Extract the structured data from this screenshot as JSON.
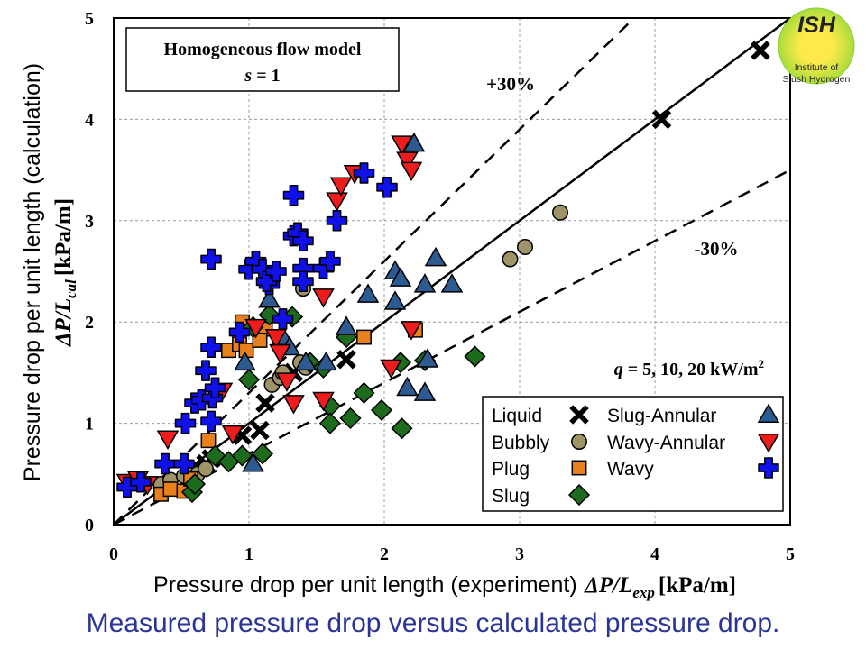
{
  "chart_data": {
    "type": "scatter",
    "title": "Homogeneous flow model",
    "subtitle": "s = 1",
    "xlabel": "Pressure drop per unit length (experiment) ΔP/L_exp [kPa/m]",
    "xlabel_plain": "Pressure drop per unit length (experiment)",
    "xlabel_symbol": "ΔP/L",
    "xlabel_sub": "exp",
    "xlabel_unit": "[kPa/m]",
    "ylabel": "Pressure drop per unit length (calculation) ΔP/L_cal [kPa/m]",
    "ylabel_plain": "Pressure drop per unit length (calculation)",
    "ylabel_symbol": "ΔP/L",
    "ylabel_sub": "cal",
    "ylabel_unit": "[kPa/m]",
    "xlim": [
      0,
      5
    ],
    "ylim": [
      0,
      5
    ],
    "xticks": [
      "0",
      "1",
      "2",
      "3",
      "4",
      "5"
    ],
    "yticks": [
      "0",
      "1",
      "2",
      "3",
      "4",
      "5"
    ],
    "grid": true,
    "legend_position": "bottom-right",
    "annotations": {
      "plus30": "+30%",
      "minus30": "-30%",
      "heat_flux": "q = 5, 10, 20 kW/m²",
      "heat_flux_var": "q",
      "heat_flux_rest": " = 5, 10, 20 kW/m",
      "heat_flux_sup": "2",
      "model_box_line1": "Homogeneous flow model",
      "model_box_line2_var": "s",
      "model_box_line2_rest": " = 1"
    },
    "reference_lines": [
      {
        "name": "y = x",
        "slope": 1.0,
        "style": "solid"
      },
      {
        "name": "+30%",
        "slope": 1.3,
        "style": "dashed"
      },
      {
        "name": "-30%",
        "slope": 0.7,
        "style": "dashed"
      }
    ],
    "series": [
      {
        "name": "Liquid",
        "marker": "x",
        "color": "#000000",
        "points": [
          [
            0.6,
            0.55
          ],
          [
            0.68,
            0.6
          ],
          [
            0.72,
            0.65
          ],
          [
            0.95,
            0.88
          ],
          [
            1.08,
            0.93
          ],
          [
            1.12,
            1.2
          ],
          [
            1.33,
            1.5
          ],
          [
            1.72,
            1.63
          ],
          [
            4.05,
            4.0
          ],
          [
            4.78,
            4.68
          ]
        ]
      },
      {
        "name": "Bubbly",
        "marker": "circle",
        "color": "#9e9467",
        "points": [
          [
            0.35,
            0.4
          ],
          [
            0.42,
            0.44
          ],
          [
            0.52,
            0.48
          ],
          [
            0.62,
            0.5
          ],
          [
            0.68,
            0.55
          ],
          [
            1.17,
            1.38
          ],
          [
            1.23,
            1.45
          ],
          [
            1.25,
            1.5
          ],
          [
            1.38,
            1.6
          ],
          [
            1.42,
            1.55
          ],
          [
            1.4,
            2.33
          ],
          [
            2.93,
            2.62
          ],
          [
            3.04,
            2.74
          ],
          [
            3.3,
            3.08
          ]
        ]
      },
      {
        "name": "Plug",
        "marker": "square",
        "color": "#e8801e",
        "points": [
          [
            0.35,
            0.3
          ],
          [
            0.42,
            0.35
          ],
          [
            0.52,
            0.33
          ],
          [
            0.57,
            0.45
          ],
          [
            0.7,
            0.83
          ],
          [
            0.85,
            1.72
          ],
          [
            0.93,
            1.78
          ],
          [
            0.98,
            1.72
          ],
          [
            0.95,
            2.0
          ],
          [
            1.12,
            1.93
          ],
          [
            1.08,
            1.82
          ],
          [
            1.85,
            1.85
          ],
          [
            2.23,
            1.92
          ]
        ]
      },
      {
        "name": "Slug",
        "marker": "diamond",
        "color": "#1d6b1d",
        "points": [
          [
            0.58,
            0.32
          ],
          [
            0.6,
            0.4
          ],
          [
            0.75,
            0.68
          ],
          [
            0.85,
            0.62
          ],
          [
            0.95,
            0.68
          ],
          [
            1.1,
            0.7
          ],
          [
            1.0,
            1.43
          ],
          [
            1.03,
            1.95
          ],
          [
            1.15,
            2.07
          ],
          [
            1.32,
            2.05
          ],
          [
            1.45,
            1.6
          ],
          [
            1.55,
            1.55
          ],
          [
            1.6,
            1.17
          ],
          [
            1.6,
            1.0
          ],
          [
            1.75,
            1.05
          ],
          [
            1.85,
            1.3
          ],
          [
            1.98,
            1.13
          ],
          [
            2.13,
            0.95
          ],
          [
            2.12,
            1.6
          ],
          [
            2.3,
            1.62
          ],
          [
            2.67,
            1.66
          ],
          [
            1.72,
            1.85
          ]
        ]
      },
      {
        "name": "Slug-Annular",
        "marker": "triangle-up",
        "color": "#2e5a92",
        "points": [
          [
            1.03,
            0.6
          ],
          [
            0.97,
            1.6
          ],
          [
            1.15,
            2.22
          ],
          [
            1.25,
            1.85
          ],
          [
            1.3,
            1.75
          ],
          [
            1.42,
            1.6
          ],
          [
            1.57,
            1.6
          ],
          [
            1.72,
            1.95
          ],
          [
            1.88,
            2.27
          ],
          [
            2.08,
            2.5
          ],
          [
            2.12,
            2.43
          ],
          [
            2.08,
            2.2
          ],
          [
            2.17,
            1.35
          ],
          [
            2.3,
            1.3
          ],
          [
            2.32,
            1.63
          ],
          [
            2.3,
            2.37
          ],
          [
            2.38,
            2.63
          ],
          [
            2.5,
            2.37
          ],
          [
            2.22,
            3.76
          ]
        ]
      },
      {
        "name": "Wavy-Annular",
        "marker": "triangle-down",
        "color": "#ee1c1c",
        "points": [
          [
            0.1,
            0.42
          ],
          [
            0.18,
            0.45
          ],
          [
            0.25,
            0.4
          ],
          [
            0.4,
            0.85
          ],
          [
            0.8,
            1.32
          ],
          [
            0.88,
            0.9
          ],
          [
            1.05,
            1.95
          ],
          [
            1.2,
            1.85
          ],
          [
            1.23,
            1.7
          ],
          [
            1.28,
            1.42
          ],
          [
            1.33,
            1.2
          ],
          [
            1.55,
            1.23
          ],
          [
            1.55,
            2.25
          ],
          [
            1.65,
            3.2
          ],
          [
            1.68,
            3.35
          ],
          [
            1.78,
            3.47
          ],
          [
            2.13,
            3.76
          ],
          [
            2.17,
            3.6
          ],
          [
            2.2,
            3.5
          ],
          [
            2.05,
            1.55
          ],
          [
            2.2,
            1.93
          ]
        ]
      },
      {
        "name": "Wavy",
        "marker": "cross",
        "color": "#1010e8",
        "points": [
          [
            0.1,
            0.37
          ],
          [
            0.2,
            0.42
          ],
          [
            0.38,
            0.6
          ],
          [
            0.52,
            0.6
          ],
          [
            0.53,
            1.0
          ],
          [
            0.6,
            1.2
          ],
          [
            0.65,
            1.23
          ],
          [
            0.72,
            1.02
          ],
          [
            0.73,
            1.25
          ],
          [
            0.75,
            1.35
          ],
          [
            0.68,
            1.52
          ],
          [
            0.72,
            1.75
          ],
          [
            0.93,
            1.9
          ],
          [
            0.72,
            2.62
          ],
          [
            1.0,
            2.52
          ],
          [
            1.05,
            2.6
          ],
          [
            1.1,
            2.52
          ],
          [
            1.15,
            2.37
          ],
          [
            1.13,
            2.4
          ],
          [
            1.25,
            2.03
          ],
          [
            1.2,
            2.5
          ],
          [
            1.33,
            2.85
          ],
          [
            1.36,
            2.88
          ],
          [
            1.4,
            2.8
          ],
          [
            1.4,
            2.53
          ],
          [
            1.4,
            2.4
          ],
          [
            1.55,
            2.53
          ],
          [
            1.6,
            2.6
          ],
          [
            1.65,
            3.0
          ],
          [
            1.85,
            3.47
          ],
          [
            2.02,
            3.33
          ],
          [
            1.33,
            3.25
          ]
        ]
      }
    ]
  },
  "logo": {
    "initials": "ISH",
    "line1": "Institute of",
    "line2": "Slush Hydrogen"
  },
  "caption": "Measured pressure drop versus calculated pressure drop."
}
